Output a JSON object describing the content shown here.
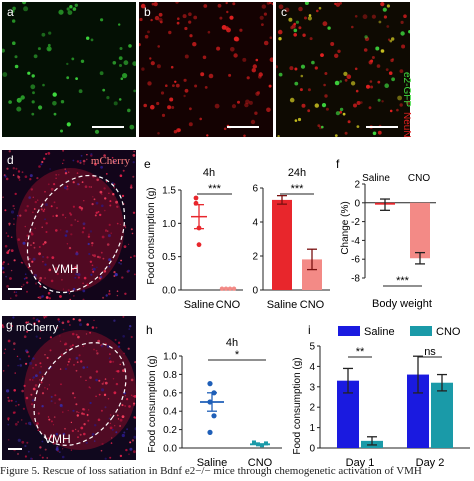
{
  "panels": {
    "a": "a",
    "b": "b",
    "c": "c",
    "d": "d",
    "e": "e",
    "f": "f",
    "g": "g",
    "h": "h",
    "i": "i"
  },
  "side_labels": {
    "gfp": "e2-GFP",
    "neun": "NeuN"
  },
  "micro_labels": {
    "d_stain": "mCherry",
    "d_region": "VMH",
    "g_stain": "mCherry",
    "g_region": "VMH"
  },
  "colors": {
    "gfp": "#3fdc3f",
    "neun": "#e02020",
    "mcherry": "#d0103a",
    "dapi": "#2a1a8a",
    "saline_bar": "#e8262c",
    "cno_bar": "#f38a86",
    "saline_scatter": "#e8262c",
    "i_saline": "#1a1ae0",
    "i_cno": "#1a9aa8",
    "h_saline": "#1f5fb8",
    "h_cno": "#1a9aa8"
  },
  "chart_data": [
    {
      "id": "e-4h",
      "type": "scatter",
      "title": "4h",
      "ylabel": "Food consumption (g)",
      "categories": [
        "Saline",
        "CNO"
      ],
      "ylim": [
        0,
        1.5
      ],
      "yticks": [
        "0.0",
        "0.5",
        "1.0",
        "1.5"
      ],
      "series": [
        {
          "values_saline": [
            1.38,
            1.3,
            0.93,
            0.68
          ],
          "values_cno": [
            0.02,
            0.02,
            0.02,
            0.02
          ]
        }
      ],
      "means": [
        1.1,
        0.02
      ],
      "sem": [
        0.18,
        0.0
      ],
      "significance": "***"
    },
    {
      "id": "e-24h",
      "type": "bar",
      "title": "24h",
      "categories": [
        "Saline",
        "CNO"
      ],
      "ylim": [
        0,
        6
      ],
      "yticks": [
        "0",
        "2",
        "4",
        "6"
      ],
      "values": [
        5.3,
        1.8
      ],
      "sem": [
        0.25,
        0.6
      ],
      "significance": "***"
    },
    {
      "id": "f",
      "type": "bar",
      "ylabel": "Change (%)",
      "xlabel": "Body weight",
      "legend_labels": [
        "Saline",
        "CNO"
      ],
      "ylim": [
        -8,
        2
      ],
      "yticks": [
        "2",
        "0",
        "-2",
        "-4",
        "-6",
        "-8"
      ],
      "values": [
        -0.2,
        -5.9
      ],
      "sem": [
        0.6,
        0.6
      ],
      "significance": "***"
    },
    {
      "id": "h-4h",
      "type": "scatter",
      "title": "4h",
      "ylabel": "Food consumption (g)",
      "categories": [
        "Saline",
        "CNO"
      ],
      "ylim": [
        0,
        1.0
      ],
      "yticks": [
        "0.0",
        "0.2",
        "0.4",
        "0.6",
        "0.8",
        "1.0"
      ],
      "values_saline": [
        0.7,
        0.6,
        0.5,
        0.35,
        0.17
      ],
      "values_cno": [
        0.06,
        0.04,
        0.03,
        0.05
      ],
      "means": [
        0.5,
        0.04
      ],
      "sem": [
        0.1,
        0.01
      ],
      "significance": "*"
    },
    {
      "id": "i",
      "type": "bar",
      "ylabel": "Food consumption (g)",
      "categories": [
        "Day 1",
        "Day 2"
      ],
      "series": [
        {
          "name": "Saline",
          "values": [
            3.3,
            3.6
          ],
          "sem": [
            0.6,
            0.9
          ]
        },
        {
          "name": "CNO",
          "values": [
            0.35,
            3.2
          ],
          "sem": [
            0.2,
            0.4
          ]
        }
      ],
      "ylim": [
        0,
        5
      ],
      "yticks": [
        "0",
        "1",
        "2",
        "3",
        "4",
        "5"
      ],
      "significance": [
        "**",
        "ns"
      ]
    }
  ],
  "caption": "Figure 5. Rescue of loss satiation in Bdnf e2−/− mice through chemogenetic activation of VMH"
}
